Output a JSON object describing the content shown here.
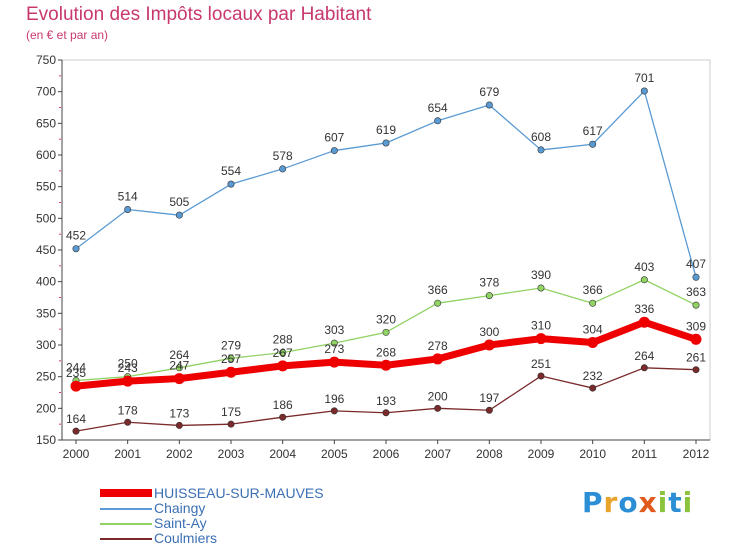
{
  "title": "Evolution des Impôts locaux par Habitant",
  "subtitle": "(en € et par an)",
  "logo_text": [
    "P",
    "r",
    "o",
    "x",
    "i",
    "t",
    "i"
  ],
  "logo_colors": [
    "#2c8fd6",
    "#e8a32a",
    "#2c8fd6",
    "#e05a1e",
    "#8bc43c",
    "#2c8fd6",
    "#8bc43c"
  ],
  "chart_data": {
    "type": "line",
    "title": "Evolution des Impôts locaux par Habitant",
    "subtitle": "(en € et par an)",
    "x": [
      2000,
      2001,
      2002,
      2003,
      2004,
      2005,
      2006,
      2007,
      2008,
      2009,
      2010,
      2011,
      2012
    ],
    "ylim": [
      150,
      750
    ],
    "yticks": [
      150,
      200,
      250,
      300,
      350,
      400,
      450,
      500,
      550,
      600,
      650,
      700,
      750
    ],
    "grid": false,
    "legend_position": "bottom-left",
    "series": [
      {
        "name": "HUISSEAU-SUR-MAUVES",
        "color": "#ee0000",
        "values": [
          235,
          243,
          247,
          257,
          267,
          273,
          268,
          278,
          300,
          310,
          304,
          336,
          309
        ]
      },
      {
        "name": "Chaingy",
        "color": "#5a9ad3",
        "values": [
          452,
          514,
          505,
          554,
          578,
          607,
          619,
          654,
          679,
          608,
          617,
          701,
          407
        ]
      },
      {
        "name": "Saint-Ay",
        "color": "#90d264",
        "values": [
          244,
          250,
          264,
          279,
          288,
          303,
          320,
          366,
          378,
          390,
          366,
          403,
          363
        ]
      },
      {
        "name": "Coulmiers",
        "color": "#7a2a2a",
        "values": [
          164,
          178,
          173,
          175,
          186,
          196,
          193,
          200,
          197,
          251,
          232,
          264,
          261
        ]
      }
    ]
  }
}
